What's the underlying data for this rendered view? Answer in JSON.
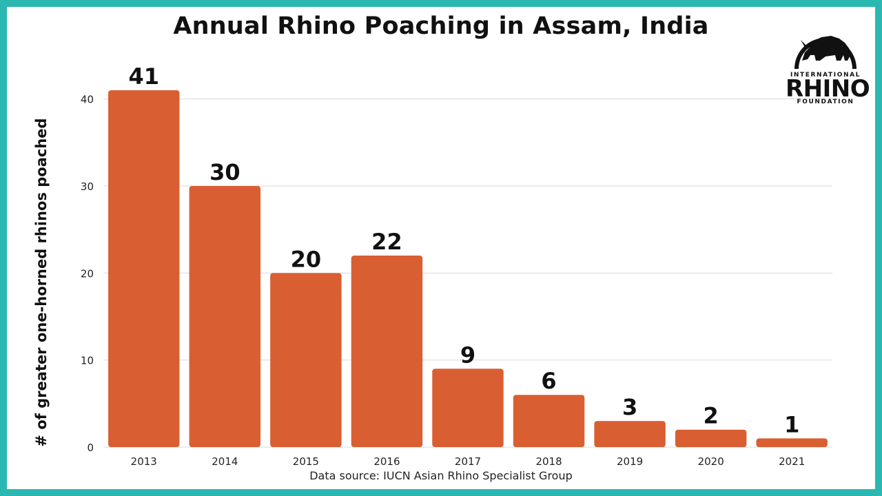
{
  "title": "Annual Rhino Poaching in Assam, India",
  "source": "Data source: IUCN Asian Rhino Specialist Group",
  "logo": {
    "top": "INTERNATIONAL",
    "main": "RHINO",
    "bottom": "FOUNDATION"
  },
  "colors": {
    "frame": "#2bb8b2",
    "bar": "#d95f33",
    "grid": "#d9d9d9"
  },
  "chart_data": {
    "type": "bar",
    "categories": [
      "2013",
      "2014",
      "2015",
      "2016",
      "2017",
      "2018",
      "2019",
      "2020",
      "2021"
    ],
    "values": [
      41,
      30,
      20,
      22,
      9,
      6,
      3,
      2,
      1
    ],
    "data_labels": [
      "41",
      "30",
      "20",
      "22",
      "9",
      "6",
      "3",
      "2",
      "1"
    ],
    "ylabel": "# of greater one-horned rhinos poached",
    "xlabel": "",
    "ylim": [
      0,
      41
    ],
    "yticks": [
      0,
      10,
      20,
      30,
      40
    ],
    "grid": true
  }
}
